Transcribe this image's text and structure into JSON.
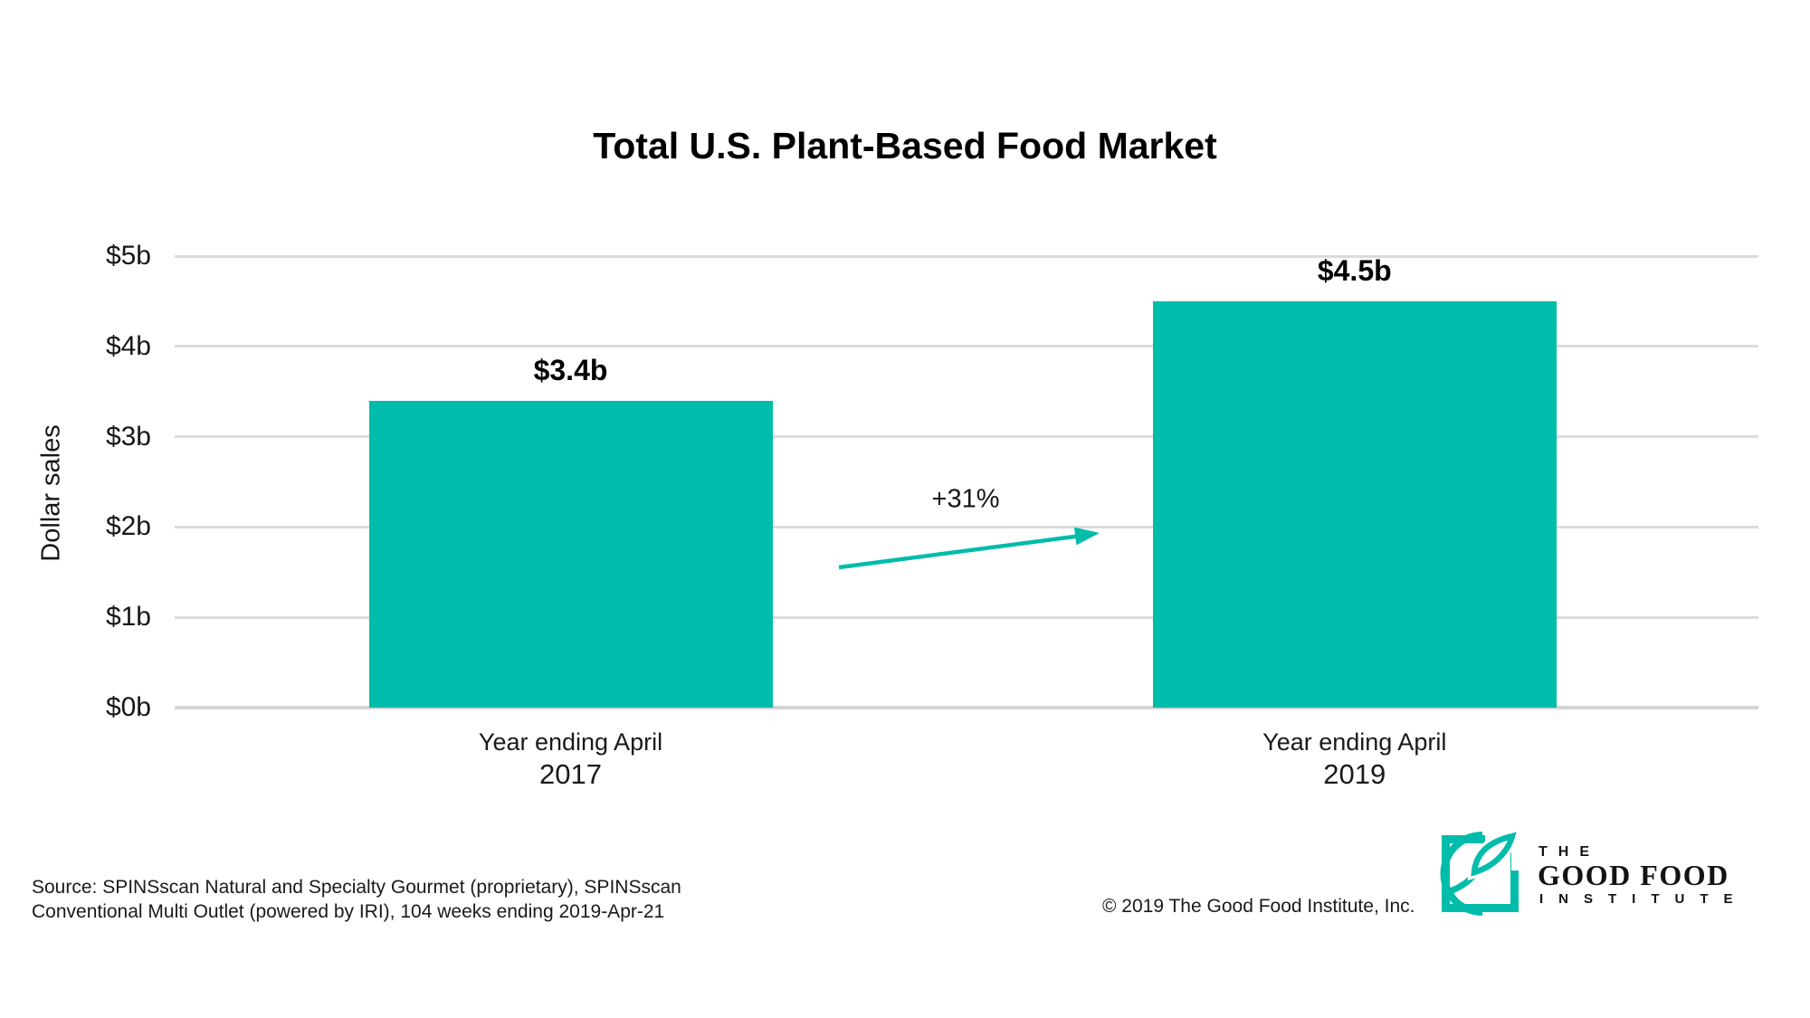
{
  "chart_data": {
    "type": "bar",
    "title": "Total U.S. Plant-Based Food Market",
    "ylabel": "Dollar sales",
    "ylim": [
      0,
      5
    ],
    "grid": true,
    "legend": false,
    "bar_color": "#00BCAB",
    "yticks": [
      {
        "value": 0,
        "label": "$0b"
      },
      {
        "value": 1,
        "label": "$1b"
      },
      {
        "value": 2,
        "label": "$2b"
      },
      {
        "value": 3,
        "label": "$3b"
      },
      {
        "value": 4,
        "label": "$4b"
      },
      {
        "value": 5,
        "label": "$5b"
      }
    ],
    "bars": [
      {
        "category_line1": "Year ending April",
        "category_line2": "2017",
        "value": 3.4,
        "label": "$3.4b"
      },
      {
        "category_line1": "Year ending April",
        "category_line2": "2019",
        "value": 4.5,
        "label": "$4.5b"
      }
    ],
    "annotation": {
      "label": "+31%",
      "shape": "rising-arrow"
    }
  },
  "footer": {
    "source_line1": "Source: SPINSscan Natural and Specialty Gourmet (proprietary), SPINSscan",
    "source_line2": "Conventional Multi Outlet (powered by IRI), 104 weeks ending 2019-Apr-21",
    "copyright": "© 2019 The Good Food Institute, Inc."
  },
  "logo": {
    "line1": "THE",
    "line2": "GOOD FOOD",
    "line3": "INSTITUTE"
  },
  "colors": {
    "teal": "#00BCAB",
    "gridline": "#DBDBDB",
    "text_dark": "#111111"
  }
}
